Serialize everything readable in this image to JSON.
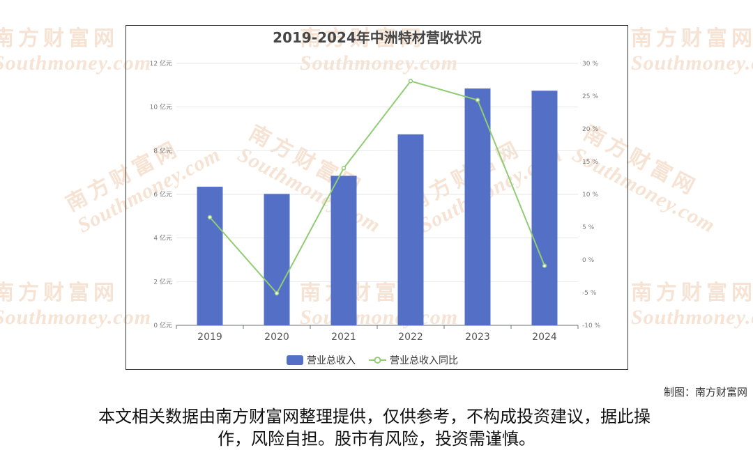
{
  "watermark": {
    "cn": "南方财富网",
    "en": "Southmoney.com"
  },
  "credit": "制图：南方财富网",
  "disclaimer": {
    "line1": "本文相关数据由南方财富网整理提供，仅供参考，不构成投资建议，据此操",
    "line2": "作，风险自担。股市有风险，投资需谨慎。"
  },
  "colors": {
    "bar": "#5470c6",
    "line": "#91cc75",
    "watermark": "#f6e3d3"
  },
  "chart_data": {
    "type": "bar",
    "title": "2019-2024年中洲特材营收状况",
    "categories": [
      "2019",
      "2020",
      "2021",
      "2022",
      "2023",
      "2024"
    ],
    "series": [
      {
        "name": "营业总收入",
        "type": "bar",
        "axis": "left",
        "values": [
          6.35,
          6.02,
          6.85,
          8.75,
          10.85,
          10.75
        ]
      },
      {
        "name": "营业总收入同比",
        "type": "line",
        "axis": "right",
        "values": [
          6.5,
          -5.1,
          14.0,
          27.3,
          24.4,
          -0.9
        ]
      }
    ],
    "y_left": {
      "min": 0,
      "max": 12,
      "ticks": [
        {
          "v": 0,
          "label": "0 亿元"
        },
        {
          "v": 2,
          "label": "2 亿元"
        },
        {
          "v": 4,
          "label": "4 亿元"
        },
        {
          "v": 6,
          "label": "6 亿元"
        },
        {
          "v": 8,
          "label": "8 亿元"
        },
        {
          "v": 10,
          "label": "10 亿元"
        },
        {
          "v": 12,
          "label": "12 亿元"
        }
      ]
    },
    "y_right": {
      "min": -10,
      "max": 30,
      "ticks": [
        {
          "v": -10,
          "label": "-10 %"
        },
        {
          "v": -5,
          "label": "-5 %"
        },
        {
          "v": 0,
          "label": "0 %"
        },
        {
          "v": 5,
          "label": "5 %"
        },
        {
          "v": 10,
          "label": "10 %"
        },
        {
          "v": 15,
          "label": "15 %"
        },
        {
          "v": 20,
          "label": "20 %"
        },
        {
          "v": 25,
          "label": "25 %"
        },
        {
          "v": 30,
          "label": "30 %"
        }
      ]
    },
    "grid": true,
    "legend_position": "bottom-center"
  }
}
